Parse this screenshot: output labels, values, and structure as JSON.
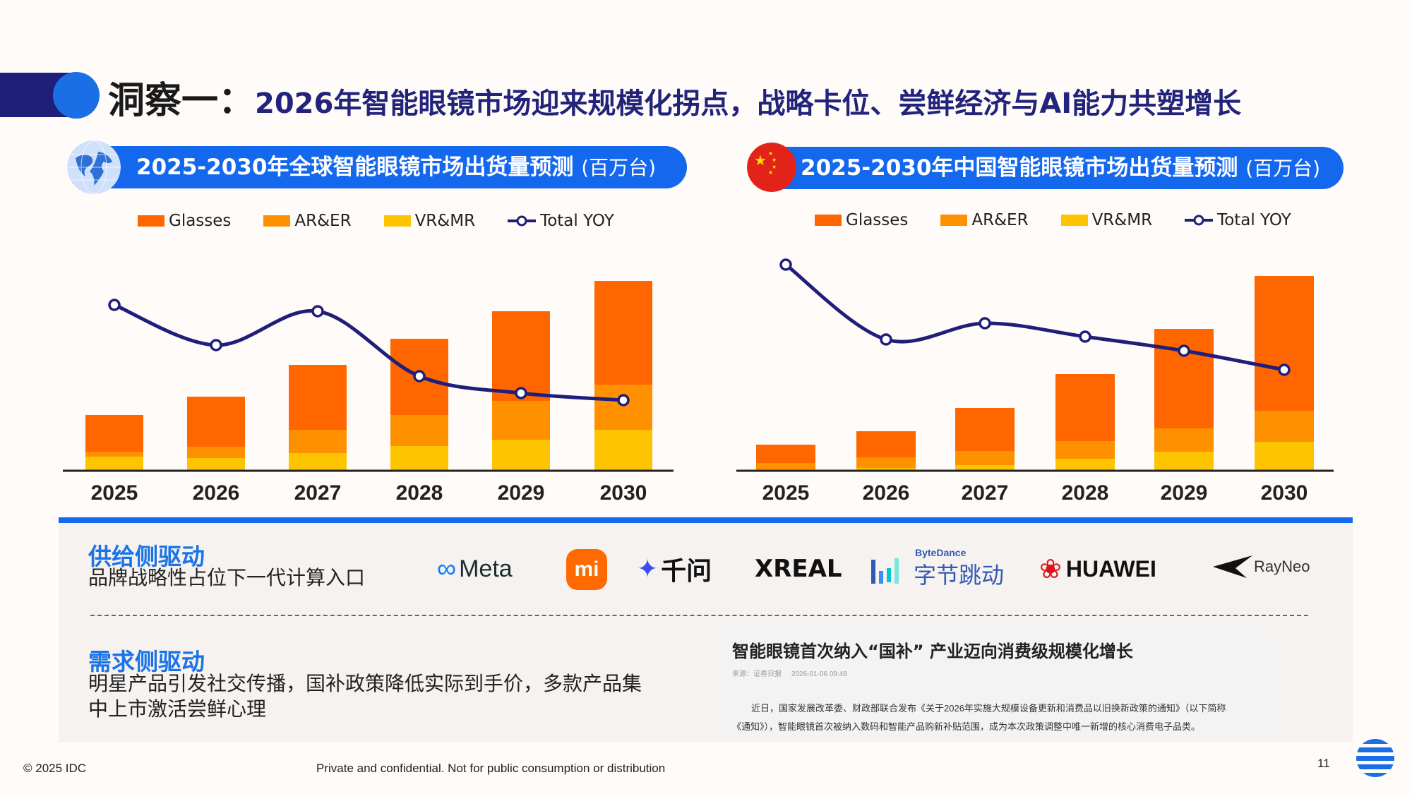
{
  "header": {
    "title_prefix": "洞察一：",
    "title": "2026年智能眼镜市场迎来规模化拐点，战略卡位、尝鲜经济与AI能力共塑增长"
  },
  "legend": {
    "glasses": "Glasses",
    "arer": "AR&ER",
    "vrmr": "VR&MR",
    "yoy": "Total YOY"
  },
  "colors": {
    "glasses": "#ff6600",
    "arer": "#ff9100",
    "vrmr": "#ffc400",
    "yoy": "#1f1f7a",
    "accent": "#1468ee"
  },
  "chart_data": [
    {
      "type": "bar",
      "stacked": true,
      "title": "2025-2030年全球智能眼镜市场出货量预测",
      "unit": "(百万台)",
      "icon": "globe-icon",
      "categories": [
        "2025",
        "2026",
        "2027",
        "2028",
        "2029",
        "2030"
      ],
      "series": [
        {
          "name": "VR&MR",
          "values": [
            19,
            17,
            24,
            34,
            43,
            57
          ]
        },
        {
          "name": "AR&ER",
          "values": [
            7,
            16,
            33,
            44,
            55,
            64
          ]
        },
        {
          "name": "Glasses",
          "values": [
            52,
            71,
            92,
            108,
            127,
            147
          ]
        },
        {
          "name": "Total YOY",
          "type": "line",
          "values": [
            234,
            177,
            225,
            133,
            109,
            99
          ]
        }
      ],
      "ylim": [
        0,
        300
      ],
      "note": "no y-axis printed; values are relative estimates"
    },
    {
      "type": "bar",
      "stacked": true,
      "title": "2025-2030年中国智能眼镜市场出货量预测",
      "unit": "(百万台)",
      "icon": "china-flag-icon",
      "categories": [
        "2025",
        "2026",
        "2027",
        "2028",
        "2029",
        "2030"
      ],
      "series": [
        {
          "name": "VR&MR",
          "values": [
            1,
            3,
            7,
            16,
            26,
            40
          ]
        },
        {
          "name": "AR&ER",
          "values": [
            9,
            15,
            20,
            25,
            33,
            44
          ]
        },
        {
          "name": "Glasses",
          "values": [
            26,
            37,
            61,
            95,
            141,
            191
          ]
        },
        {
          "name": "Total YOY",
          "type": "line",
          "values": [
            291,
            185,
            208,
            189,
            169,
            142
          ]
        }
      ],
      "ylim": [
        0,
        300
      ]
    }
  ],
  "supply": {
    "heading": "供给侧驱动",
    "text": "品牌战略性占位下一代计算入口",
    "logos": {
      "meta": "Meta",
      "mi": "mi",
      "qianwen": "千问",
      "xreal": "XREAL",
      "bytedance_en": "ByteDance",
      "bytedance_cn": "字节跳动",
      "huawei": "HUAWEI",
      "rayneo": "RayNeo"
    }
  },
  "demand": {
    "heading": "需求侧驱动",
    "line1": "明星产品引发社交传播，国补政策降低实际到手价，多款产品集",
    "line2": "中上市激活尝鲜心理"
  },
  "news": {
    "title": "智能眼镜首次纳入“国补” 产业迈向消费级规模化增长",
    "source": "来源：证券日报",
    "date": "2026-01-06 09:48",
    "para1": "近日，国家发展改革委、财政部联合发布《关于2026年实施大规模设备更新和消费品以旧换新政策的通知》（以下简称",
    "para2": "《通知》），智能眼镜首次被纳入数码和智能产品购新补贴范围，成为本次政策调整中唯一新增的核心消费电子品类。"
  },
  "footer": {
    "copyright": "© 2025 IDC",
    "confidential": "Private and confidential. Not for public consumption or distribution",
    "page": "11"
  }
}
